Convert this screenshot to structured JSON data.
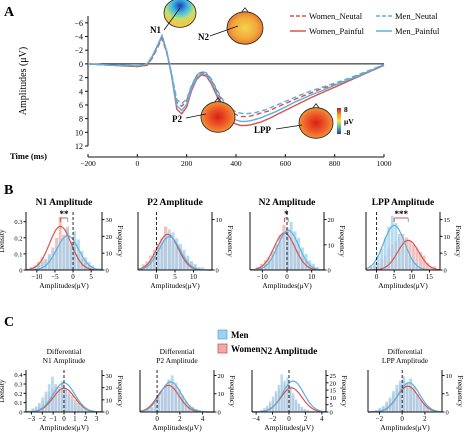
{
  "panel_letters": [
    "A",
    "B",
    "C"
  ],
  "colors": {
    "women": "#d9534f",
    "men": "#5bb0dc",
    "women_fill": "#f2a9a6",
    "men_fill": "#9fd0ee",
    "axis": "#111111"
  },
  "icons": [
    "scalp-topomap-icon",
    "color-scale-icon"
  ],
  "panel_a": {
    "components": [
      "N1",
      "P2",
      "N2",
      "LPP"
    ],
    "colorbar": {
      "max": "8",
      "unit": "μV",
      "min": "-8"
    },
    "legend": [
      "Women_Neutal",
      "Men_Neutal",
      "Women_Painful",
      "Men_Painful"
    ]
  },
  "panel_c_legend": [
    "Men",
    "Women"
  ],
  "chart_data": [
    {
      "type": "line",
      "xlabel": "Time (ms)",
      "ylabel": "Amplitudes (μV)",
      "xlim": [
        -200,
        1000
      ],
      "ylim": [
        -7,
        12
      ],
      "y_reversed": true,
      "x_ticks": [
        -200,
        0,
        200,
        400,
        600,
        800,
        1000
      ],
      "y_ticks": [
        -6,
        -4,
        -2,
        0,
        2,
        4,
        6,
        8,
        10,
        12
      ],
      "x": [
        -200,
        -150,
        -100,
        -50,
        0,
        20,
        40,
        60,
        80,
        100,
        120,
        140,
        160,
        180,
        200,
        220,
        240,
        260,
        280,
        300,
        320,
        340,
        360,
        380,
        400,
        420,
        440,
        460,
        480,
        500,
        520,
        540,
        560,
        600,
        650,
        700,
        750,
        800,
        850,
        900,
        950,
        1000
      ],
      "series": [
        {
          "name": "Women_Neutal",
          "dash": true,
          "color": "#d9534f",
          "values": [
            0,
            0.1,
            0.2,
            0.3,
            0.4,
            0.3,
            0.2,
            -0.8,
            -2.2,
            -3.7,
            -1.5,
            1.8,
            5.6,
            6.2,
            5.4,
            3.3,
            1.8,
            1.2,
            1.4,
            2.4,
            3.8,
            5.2,
            6.3,
            7.0,
            7.4,
            7.7,
            7.7,
            7.6,
            7.4,
            7.2,
            7.0,
            6.8,
            6.4,
            5.8,
            5.0,
            4.3,
            3.6,
            3.0,
            2.4,
            1.6,
            0.9,
            0.2
          ]
        },
        {
          "name": "Men_Neutal",
          "dash": true,
          "color": "#5bb0dc",
          "values": [
            0,
            0.1,
            0.2,
            0.2,
            0.3,
            0.2,
            0.1,
            -0.9,
            -2.3,
            -3.8,
            -1.6,
            1.6,
            5.2,
            5.8,
            5.1,
            3.1,
            1.7,
            1.1,
            1.3,
            2.2,
            3.6,
            4.9,
            5.9,
            6.6,
            7.0,
            7.2,
            7.3,
            7.2,
            7.1,
            6.9,
            6.7,
            6.4,
            6.1,
            5.5,
            4.7,
            4.0,
            3.4,
            2.8,
            2.2,
            1.5,
            0.8,
            0.1
          ]
        },
        {
          "name": "Women_Painful",
          "dash": false,
          "color": "#d9534f",
          "values": [
            0,
            0.1,
            0.2,
            0.3,
            0.4,
            0.3,
            0.1,
            -1.0,
            -2.5,
            -4.0,
            -1.7,
            2.0,
            6.6,
            7.3,
            6.3,
            3.9,
            2.3,
            1.6,
            1.8,
            2.9,
            4.5,
            6.2,
            7.5,
            8.3,
            8.8,
            9.0,
            9.0,
            8.9,
            8.7,
            8.5,
            8.2,
            7.9,
            7.5,
            6.8,
            5.9,
            5.0,
            4.2,
            3.4,
            2.6,
            1.8,
            1.0,
            0.2
          ]
        },
        {
          "name": "Men_Painful",
          "dash": false,
          "color": "#5bb0dc",
          "values": [
            0,
            0.1,
            0.2,
            0.2,
            0.3,
            0.2,
            0.0,
            -1.1,
            -2.6,
            -4.2,
            -1.8,
            1.8,
            6.1,
            6.8,
            5.9,
            3.6,
            2.1,
            1.4,
            1.6,
            2.6,
            4.2,
            5.8,
            7.0,
            7.8,
            8.2,
            8.4,
            8.4,
            8.3,
            8.1,
            7.9,
            7.6,
            7.3,
            7.0,
            6.3,
            5.4,
            4.6,
            3.9,
            3.1,
            2.4,
            1.7,
            0.9,
            0.1
          ]
        }
      ]
    },
    {
      "type": "bar",
      "title": "N1 Amplitude",
      "xlabel": "Amplitudes(μV)",
      "ylabel": "Density",
      "ylabel_right": "Frequency",
      "significance": "**",
      "x_ticks": [
        -10,
        -5,
        0,
        5
      ],
      "y_ticks": [
        0,
        0.1,
        0.2,
        0.3
      ],
      "y2_ticks": [
        0,
        10,
        20,
        30
      ],
      "xlim": [
        -13,
        8
      ],
      "ylim": [
        0,
        0.36
      ],
      "bin_start": -12,
      "bin_width": 1,
      "series": [
        {
          "name": "Men",
          "values": [
            0.01,
            0.02,
            0.03,
            0.05,
            0.07,
            0.09,
            0.12,
            0.15,
            0.18,
            0.2,
            0.26,
            0.15,
            0.24,
            0.19,
            0.12,
            0.08,
            0.05,
            0.03,
            0.01,
            0.01
          ]
        },
        {
          "name": "Women",
          "values": [
            0.02,
            0.03,
            0.05,
            0.08,
            0.06,
            0.1,
            0.14,
            0.2,
            0.33,
            0.22,
            0.27,
            0.18,
            0.17,
            0.1,
            0.07,
            0.05,
            0.03,
            0.02,
            0.01,
            0.0
          ]
        }
      ],
      "density_peaks": {
        "Men": -1.5,
        "Women": -3.5
      }
    },
    {
      "type": "bar",
      "title": "P2 Amplitude",
      "xlabel": "Amplitudes(μV)",
      "ylabel_right": "Frequency",
      "x_ticks": [
        0,
        5,
        10
      ],
      "y2_ticks": [
        0,
        10
      ],
      "xlim": [
        -5,
        15
      ],
      "ylim": [
        0,
        0.2
      ],
      "bin_start": -4,
      "bin_width": 1,
      "series": [
        {
          "name": "Men",
          "values": [
            0.01,
            0.02,
            0.03,
            0.05,
            0.08,
            0.1,
            0.12,
            0.14,
            0.13,
            0.11,
            0.09,
            0.07,
            0.05,
            0.03,
            0.02,
            0.01,
            0.01,
            0.0
          ]
        },
        {
          "name": "Women",
          "values": [
            0.02,
            0.03,
            0.05,
            0.07,
            0.09,
            0.11,
            0.15,
            0.12,
            0.1,
            0.08,
            0.07,
            0.05,
            0.04,
            0.03,
            0.02,
            0.01,
            0.0,
            0.0
          ]
        }
      ],
      "density_peaks": {
        "Men": 3.5,
        "Women": 3.0
      }
    },
    {
      "type": "bar",
      "title": "N2 Amplitude",
      "xlabel": "Amplitudes(μV)",
      "ylabel_right": "Frequency",
      "significance": "*",
      "x_ticks": [
        -10,
        0,
        10
      ],
      "y2_ticks": [
        0,
        10,
        20
      ],
      "xlim": [
        -15,
        15
      ],
      "ylim": [
        0,
        0.18
      ],
      "bin_start": -14,
      "bin_width": 1.5,
      "series": [
        {
          "name": "Men",
          "values": [
            0.0,
            0.01,
            0.01,
            0.02,
            0.03,
            0.05,
            0.07,
            0.09,
            0.12,
            0.13,
            0.15,
            0.12,
            0.1,
            0.07,
            0.05,
            0.03,
            0.02,
            0.01,
            0.0
          ]
        },
        {
          "name": "Women",
          "values": [
            0.0,
            0.01,
            0.02,
            0.03,
            0.04,
            0.06,
            0.08,
            0.11,
            0.14,
            0.12,
            0.1,
            0.08,
            0.06,
            0.04,
            0.03,
            0.02,
            0.01,
            0.0,
            0.0
          ]
        }
      ],
      "density_peaks": {
        "Men": 0.5,
        "Women": -1.0
      }
    },
    {
      "type": "bar",
      "title": "LPP Amplitude",
      "xlabel": "Amplitudes(μV)",
      "ylabel_right": "Frequency",
      "significance": "***",
      "x_ticks": [
        0,
        5,
        10,
        15
      ],
      "y2_ticks": [
        0,
        5,
        10,
        15
      ],
      "xlim": [
        -3,
        18
      ],
      "ylim": [
        0,
        0.16
      ],
      "bin_start": -2,
      "bin_width": 1,
      "series": [
        {
          "name": "Men",
          "values": [
            0.01,
            0.02,
            0.04,
            0.06,
            0.09,
            0.12,
            0.15,
            0.13,
            0.1,
            0.08,
            0.06,
            0.04,
            0.03,
            0.02,
            0.01,
            0.0,
            0.0,
            0.0,
            0.0
          ]
        },
        {
          "name": "Women",
          "values": [
            0.01,
            0.01,
            0.02,
            0.03,
            0.04,
            0.06,
            0.07,
            0.08,
            0.09,
            0.1,
            0.09,
            0.08,
            0.07,
            0.06,
            0.05,
            0.04,
            0.02,
            0.01,
            0.01
          ]
        }
      ],
      "density_peaks": {
        "Men": 5.0,
        "Women": 9.0
      }
    },
    {
      "type": "bar",
      "title": "Differential\nN1 Amplitude",
      "xlabel": "Amplitudes(μV)",
      "ylabel": "Density",
      "ylabel_right": "Frequency",
      "x_ticks": [
        -3,
        -2,
        -1,
        0,
        1,
        2,
        3
      ],
      "y_ticks": [
        0,
        0.1,
        0.2,
        0.3,
        0.4
      ],
      "y2_ticks": [
        0,
        10,
        20,
        30
      ],
      "xlim": [
        -3.5,
        3.5
      ],
      "ylim": [
        0,
        0.45
      ],
      "bin_start": -3.3,
      "bin_width": 0.3,
      "series": [
        {
          "name": "Men",
          "values": [
            0.02,
            0.04,
            0.06,
            0.1,
            0.16,
            0.22,
            0.3,
            0.38,
            0.28,
            0.24,
            0.33,
            0.25,
            0.2,
            0.14,
            0.1,
            0.07,
            0.05,
            0.03,
            0.02,
            0.01,
            0.01,
            0.0
          ]
        },
        {
          "name": "Women",
          "values": [
            0.01,
            0.03,
            0.05,
            0.08,
            0.12,
            0.18,
            0.22,
            0.26,
            0.3,
            0.27,
            0.31,
            0.26,
            0.22,
            0.18,
            0.13,
            0.1,
            0.07,
            0.05,
            0.03,
            0.02,
            0.01,
            0.0
          ]
        }
      ],
      "density_peaks": {
        "Men": 0.0,
        "Women": 0.0
      }
    },
    {
      "type": "bar",
      "title": "Differential\nP2 Amplitude",
      "xlabel": "Amplitudes(μV)",
      "ylabel_right": "Frequency",
      "x_ticks": [
        0,
        2,
        4
      ],
      "y2_ticks": [
        0,
        10,
        20
      ],
      "xlim": [
        -1.5,
        5
      ],
      "ylim": [
        0,
        0.4
      ],
      "bin_start": -1.2,
      "bin_width": 0.3,
      "series": [
        {
          "name": "Men",
          "values": [
            0.01,
            0.02,
            0.04,
            0.07,
            0.12,
            0.18,
            0.25,
            0.3,
            0.35,
            0.28,
            0.22,
            0.16,
            0.11,
            0.07,
            0.05,
            0.03,
            0.02,
            0.01,
            0.0,
            0.0
          ]
        },
        {
          "name": "Women",
          "values": [
            0.01,
            0.03,
            0.05,
            0.09,
            0.14,
            0.2,
            0.26,
            0.31,
            0.28,
            0.25,
            0.2,
            0.15,
            0.1,
            0.07,
            0.04,
            0.03,
            0.02,
            0.01,
            0.0,
            0.0
          ]
        }
      ],
      "density_peaks": {
        "Men": 1.2,
        "Women": 1.0
      }
    },
    {
      "type": "bar",
      "title": "N2 Amplitude",
      "xlabel": "Amplitudes(μV)",
      "ylabel_right": "Frequency",
      "x_ticks": [
        -4,
        -2,
        0,
        2,
        4
      ],
      "y2_ticks": [
        0,
        5,
        10,
        15,
        20,
        25
      ],
      "xlim": [
        -4.5,
        4.5
      ],
      "ylim": [
        0,
        0.4
      ],
      "bin_start": -4.2,
      "bin_width": 0.35,
      "series": [
        {
          "name": "Men",
          "values": [
            0.0,
            0.01,
            0.02,
            0.04,
            0.06,
            0.1,
            0.15,
            0.2,
            0.26,
            0.36,
            0.3,
            0.33,
            0.25,
            0.18,
            0.12,
            0.08,
            0.05,
            0.03,
            0.02,
            0.01,
            0.0,
            0.0,
            0.0,
            0.0
          ]
        },
        {
          "name": "Women",
          "values": [
            0.0,
            0.01,
            0.02,
            0.03,
            0.05,
            0.08,
            0.12,
            0.17,
            0.22,
            0.26,
            0.28,
            0.25,
            0.2,
            0.15,
            0.11,
            0.08,
            0.05,
            0.03,
            0.02,
            0.01,
            0.01,
            0.0,
            0.0,
            0.0
          ]
        }
      ],
      "density_peaks": {
        "Men": 0.5,
        "Women": 0.3
      }
    },
    {
      "type": "bar",
      "title": "Differential\nLPP Amplitude",
      "xlabel": "Amplitudes(μV)",
      "ylabel_right": "Frequency",
      "x_ticks": [
        -2,
        0,
        2
      ],
      "y2_ticks": [
        0,
        5,
        10
      ],
      "xlim": [
        -3,
        3.5
      ],
      "ylim": [
        0,
        0.4
      ],
      "bin_start": -2.7,
      "bin_width": 0.3,
      "series": [
        {
          "name": "Men",
          "values": [
            0.01,
            0.02,
            0.04,
            0.06,
            0.1,
            0.14,
            0.2,
            0.26,
            0.3,
            0.34,
            0.28,
            0.32,
            0.24,
            0.17,
            0.12,
            0.08,
            0.05,
            0.03,
            0.02,
            0.01,
            0.0
          ]
        },
        {
          "name": "Women",
          "values": [
            0.01,
            0.02,
            0.03,
            0.05,
            0.08,
            0.12,
            0.17,
            0.22,
            0.27,
            0.3,
            0.28,
            0.26,
            0.21,
            0.16,
            0.11,
            0.08,
            0.05,
            0.03,
            0.02,
            0.01,
            0.0
          ]
        }
      ],
      "density_peaks": {
        "Men": 0.6,
        "Women": 0.5
      }
    }
  ]
}
